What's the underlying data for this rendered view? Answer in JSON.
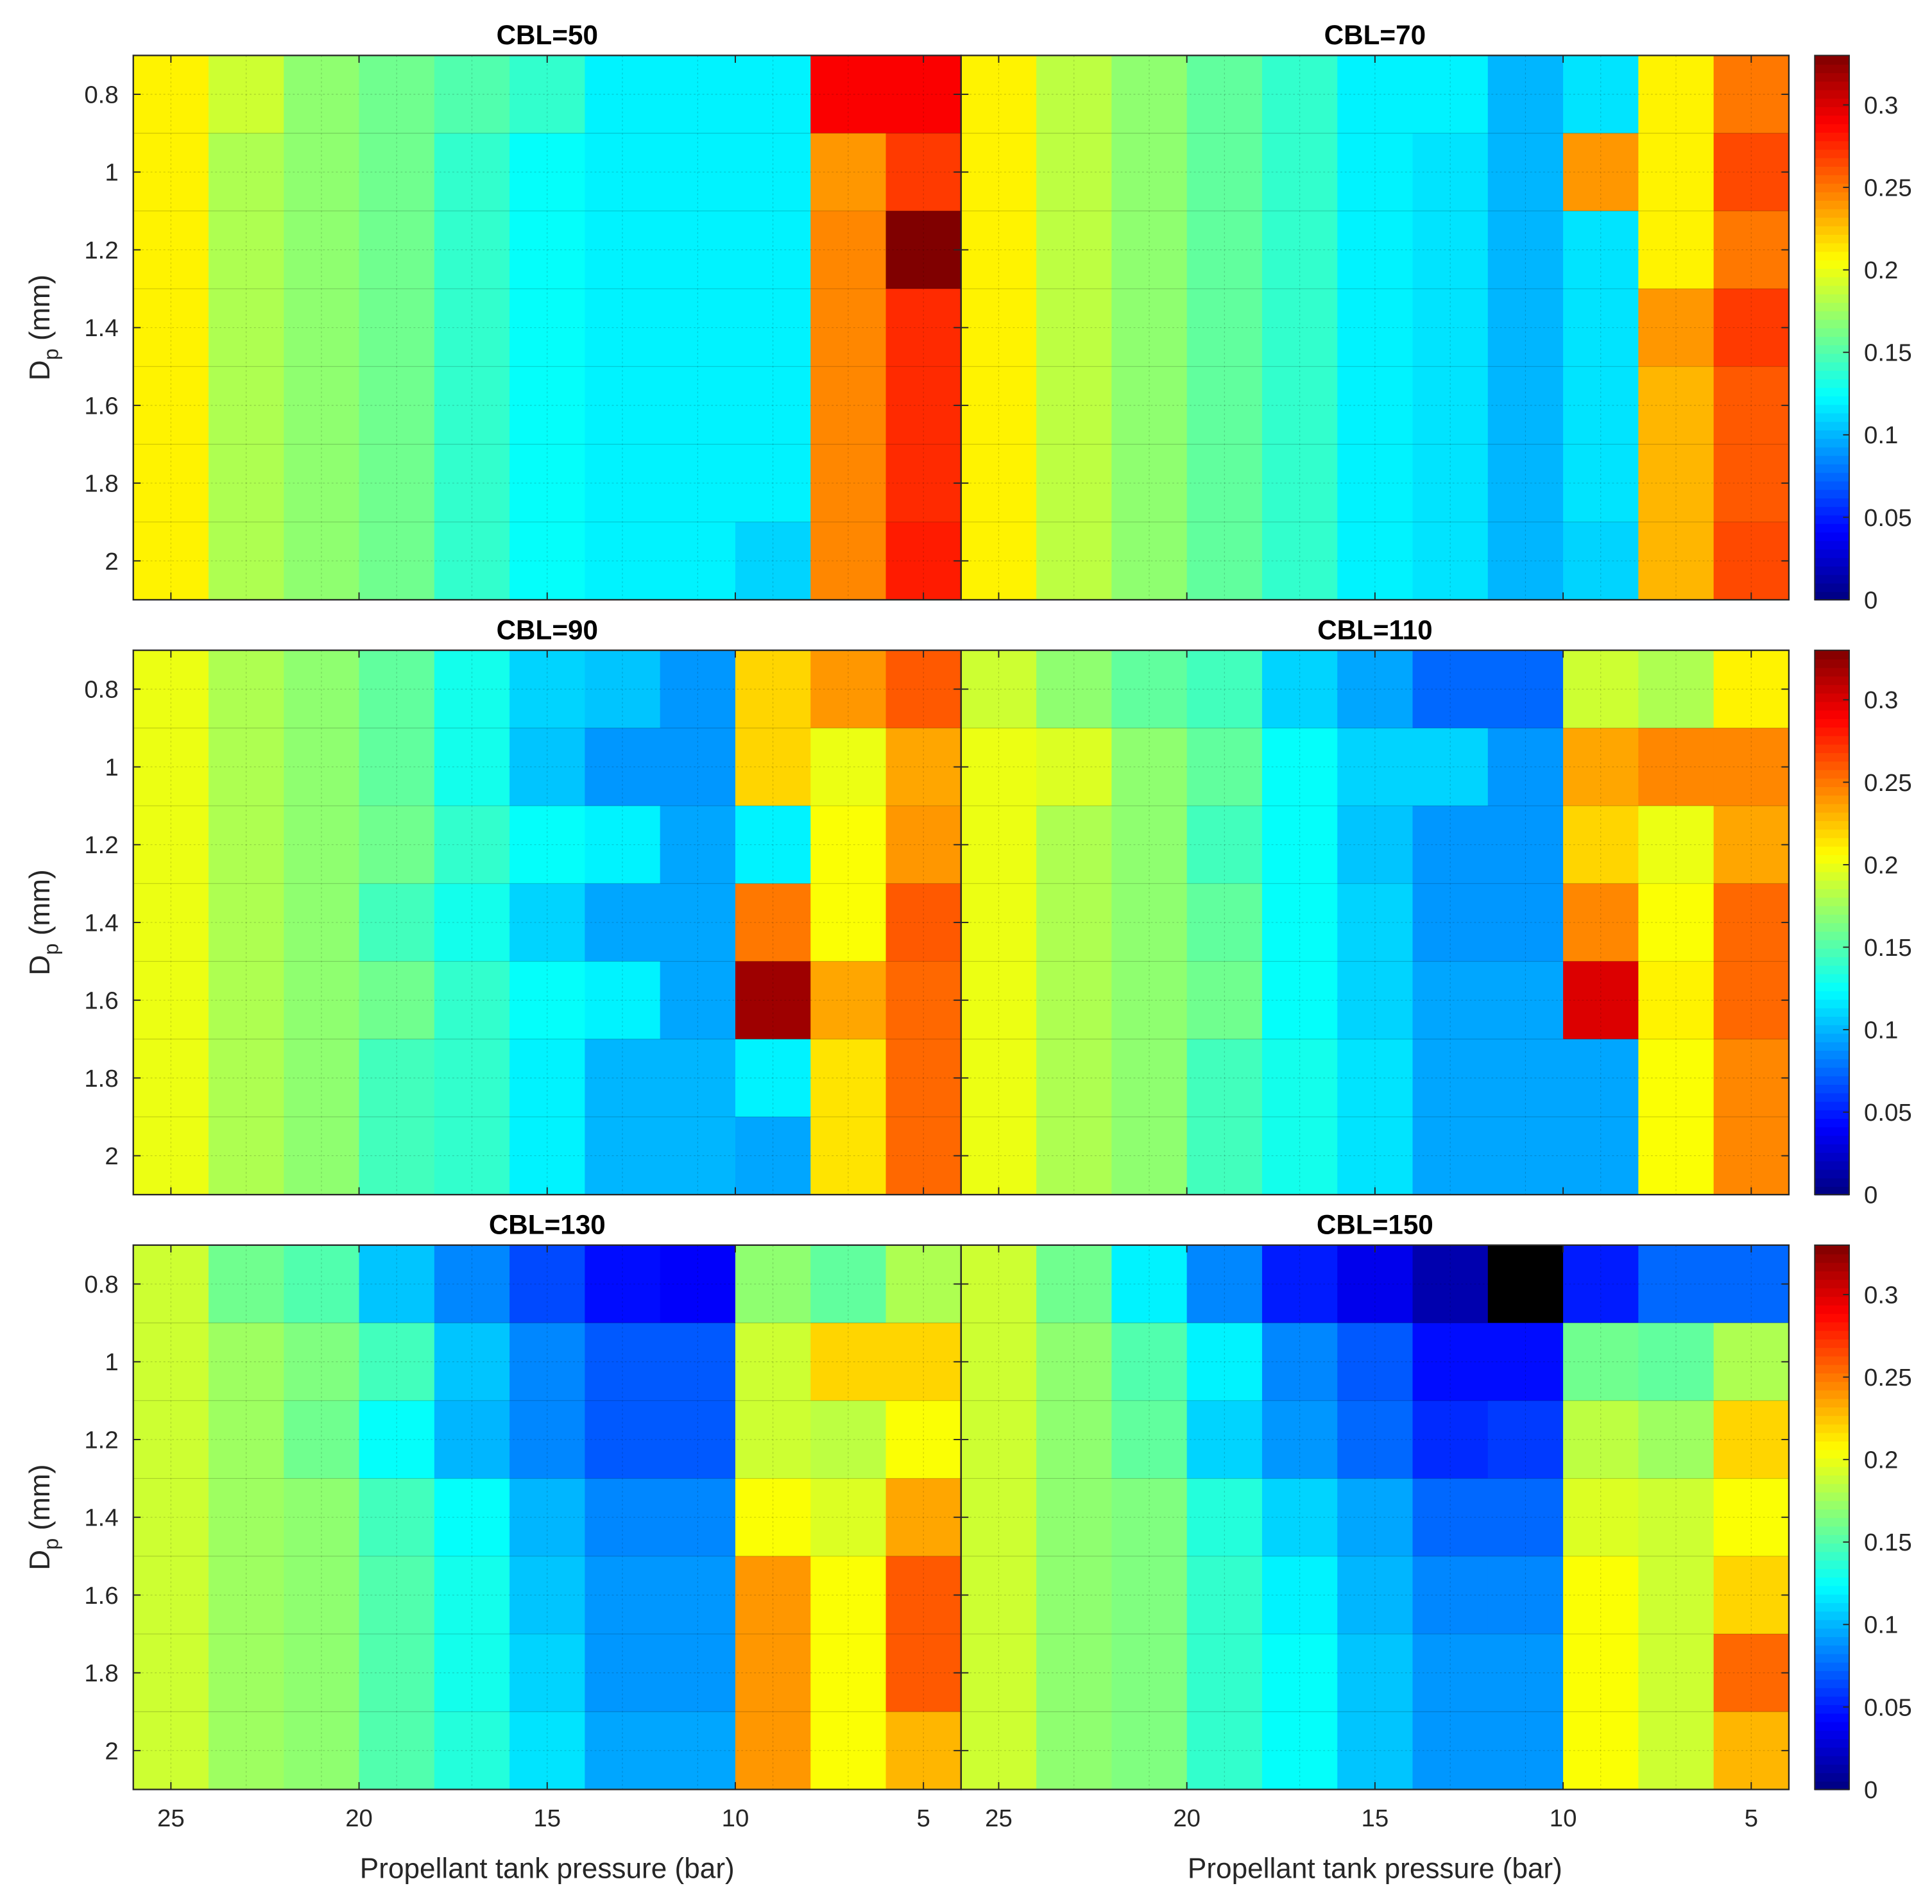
{
  "chart_data": {
    "type": "heatmap",
    "xlabel": "Propellant tank pressure (bar)",
    "ylabel": "D",
    "ylabel_sub": "p",
    "ylabel_unit": " (mm)",
    "x": [
      25,
      23,
      21,
      19,
      17,
      15,
      13,
      11,
      9,
      7,
      5
    ],
    "y": [
      0.8,
      1.0,
      1.2,
      1.4,
      1.6,
      1.8,
      2.0
    ],
    "x_ticks": [
      "25",
      "20",
      "15",
      "10",
      "5"
    ],
    "y_ticks": [
      "0.8",
      "1",
      "1.2",
      "1.4",
      "1.6",
      "1.8",
      "2"
    ],
    "x_reversed": true,
    "colormap": "jet",
    "clim": [
      0,
      0.33
    ],
    "colorbar_ticks": [
      "0",
      "0.05",
      "0.1",
      "0.15",
      "0.2",
      "0.25",
      "0.3"
    ],
    "missing_color": "#000000",
    "grid": true,
    "panels": [
      {
        "title": "CBL=50",
        "z": [
          [
            0.21,
            0.19,
            0.17,
            0.16,
            0.15,
            0.14,
            0.12,
            0.12,
            0.12,
            0.29,
            0.29
          ],
          [
            0.21,
            0.18,
            0.17,
            0.16,
            0.14,
            0.125,
            0.12,
            0.12,
            0.12,
            0.24,
            0.27
          ],
          [
            0.21,
            0.18,
            0.17,
            0.16,
            0.14,
            0.125,
            0.12,
            0.12,
            0.12,
            0.245,
            0.33
          ],
          [
            0.21,
            0.18,
            0.17,
            0.16,
            0.14,
            0.125,
            0.12,
            0.12,
            0.12,
            0.245,
            0.275
          ],
          [
            0.21,
            0.18,
            0.17,
            0.16,
            0.14,
            0.125,
            0.12,
            0.12,
            0.12,
            0.245,
            0.275
          ],
          [
            0.21,
            0.18,
            0.17,
            0.16,
            0.14,
            0.125,
            0.12,
            0.12,
            0.12,
            0.245,
            0.275
          ],
          [
            0.21,
            0.18,
            0.17,
            0.16,
            0.14,
            0.125,
            0.12,
            0.12,
            0.11,
            0.245,
            0.28
          ]
        ]
      },
      {
        "title": "CBL=70",
        "z": [
          [
            0.21,
            0.185,
            0.17,
            0.155,
            0.14,
            0.12,
            0.12,
            0.1,
            0.115,
            0.21,
            0.25
          ],
          [
            0.21,
            0.185,
            0.17,
            0.155,
            0.14,
            0.12,
            0.115,
            0.1,
            0.24,
            0.21,
            0.265
          ],
          [
            0.21,
            0.185,
            0.17,
            0.155,
            0.14,
            0.12,
            0.115,
            0.1,
            0.115,
            0.21,
            0.25
          ],
          [
            0.21,
            0.185,
            0.17,
            0.155,
            0.14,
            0.12,
            0.115,
            0.1,
            0.115,
            0.24,
            0.27
          ],
          [
            0.21,
            0.185,
            0.17,
            0.155,
            0.14,
            0.12,
            0.115,
            0.1,
            0.115,
            0.23,
            0.26
          ],
          [
            0.21,
            0.185,
            0.17,
            0.155,
            0.14,
            0.12,
            0.115,
            0.1,
            0.115,
            0.23,
            0.26
          ],
          [
            0.21,
            0.185,
            0.17,
            0.155,
            0.14,
            0.12,
            0.115,
            0.1,
            0.11,
            0.23,
            0.265
          ]
        ]
      },
      {
        "title": "CBL=90",
        "z": [
          [
            0.2,
            0.18,
            0.17,
            0.155,
            0.13,
            0.11,
            0.105,
            0.09,
            0.22,
            0.24,
            0.26
          ],
          [
            0.2,
            0.18,
            0.17,
            0.155,
            0.13,
            0.105,
            0.09,
            0.09,
            0.22,
            0.2,
            0.235
          ],
          [
            0.2,
            0.18,
            0.17,
            0.16,
            0.14,
            0.125,
            0.12,
            0.095,
            0.12,
            0.205,
            0.24
          ],
          [
            0.2,
            0.18,
            0.17,
            0.145,
            0.13,
            0.11,
            0.095,
            0.095,
            0.25,
            0.205,
            0.26
          ],
          [
            0.2,
            0.18,
            0.17,
            0.16,
            0.14,
            0.125,
            0.12,
            0.095,
            0.32,
            0.235,
            0.255
          ],
          [
            0.2,
            0.18,
            0.17,
            0.145,
            0.14,
            0.12,
            0.1,
            0.1,
            0.12,
            0.215,
            0.255
          ],
          [
            0.2,
            0.18,
            0.17,
            0.145,
            0.14,
            0.12,
            0.1,
            0.1,
            0.095,
            0.215,
            0.255
          ]
        ]
      },
      {
        "title": "CBL=110",
        "z": [
          [
            0.19,
            0.17,
            0.155,
            0.145,
            0.11,
            0.095,
            0.075,
            0.075,
            0.19,
            0.18,
            0.21
          ],
          [
            0.2,
            0.195,
            0.17,
            0.155,
            0.125,
            0.11,
            0.11,
            0.09,
            0.235,
            0.245,
            0.245
          ],
          [
            0.2,
            0.18,
            0.17,
            0.145,
            0.125,
            0.105,
            0.09,
            0.09,
            0.22,
            0.2,
            0.235
          ],
          [
            0.2,
            0.18,
            0.17,
            0.155,
            0.125,
            0.11,
            0.09,
            0.09,
            0.245,
            0.205,
            0.255
          ],
          [
            0.2,
            0.18,
            0.17,
            0.16,
            0.125,
            0.11,
            0.095,
            0.095,
            0.3,
            0.21,
            0.255
          ],
          [
            0.2,
            0.18,
            0.17,
            0.145,
            0.13,
            0.115,
            0.095,
            0.095,
            0.095,
            0.205,
            0.245
          ],
          [
            0.2,
            0.18,
            0.17,
            0.145,
            0.13,
            0.115,
            0.095,
            0.095,
            0.095,
            0.205,
            0.245
          ]
        ]
      },
      {
        "title": "CBL=130",
        "z": [
          [
            0.19,
            0.16,
            0.15,
            0.105,
            0.085,
            0.065,
            0.045,
            0.04,
            0.17,
            0.155,
            0.18
          ],
          [
            0.19,
            0.175,
            0.165,
            0.145,
            0.105,
            0.085,
            0.07,
            0.07,
            0.19,
            0.22,
            0.22
          ],
          [
            0.19,
            0.175,
            0.16,
            0.125,
            0.1,
            0.085,
            0.07,
            0.07,
            0.19,
            0.185,
            0.205
          ],
          [
            0.19,
            0.175,
            0.17,
            0.145,
            0.125,
            0.1,
            0.085,
            0.085,
            0.205,
            0.195,
            0.235
          ],
          [
            0.19,
            0.175,
            0.17,
            0.15,
            0.13,
            0.105,
            0.09,
            0.09,
            0.24,
            0.205,
            0.26
          ],
          [
            0.19,
            0.175,
            0.17,
            0.15,
            0.13,
            0.11,
            0.09,
            0.09,
            0.24,
            0.205,
            0.26
          ],
          [
            0.19,
            0.175,
            0.17,
            0.15,
            0.135,
            0.115,
            0.095,
            0.095,
            0.24,
            0.205,
            0.23
          ]
        ]
      },
      {
        "title": "CBL=150",
        "z": [
          [
            0.19,
            0.16,
            0.12,
            0.085,
            0.05,
            0.035,
            0.015,
            null,
            0.05,
            0.075,
            0.075
          ],
          [
            0.19,
            0.17,
            0.15,
            0.12,
            0.085,
            0.07,
            0.045,
            0.045,
            0.16,
            0.155,
            0.18
          ],
          [
            0.19,
            0.17,
            0.155,
            0.11,
            0.09,
            0.075,
            0.055,
            0.06,
            0.185,
            0.175,
            0.22
          ],
          [
            0.19,
            0.17,
            0.165,
            0.135,
            0.11,
            0.095,
            0.075,
            0.075,
            0.195,
            0.19,
            0.205
          ],
          [
            0.19,
            0.17,
            0.165,
            0.14,
            0.12,
            0.1,
            0.085,
            0.085,
            0.205,
            0.19,
            0.22
          ],
          [
            0.19,
            0.17,
            0.165,
            0.14,
            0.125,
            0.105,
            0.09,
            0.09,
            0.205,
            0.19,
            0.255
          ],
          [
            0.19,
            0.17,
            0.165,
            0.14,
            0.125,
            0.105,
            0.09,
            0.09,
            0.205,
            0.19,
            0.23
          ]
        ]
      }
    ]
  }
}
